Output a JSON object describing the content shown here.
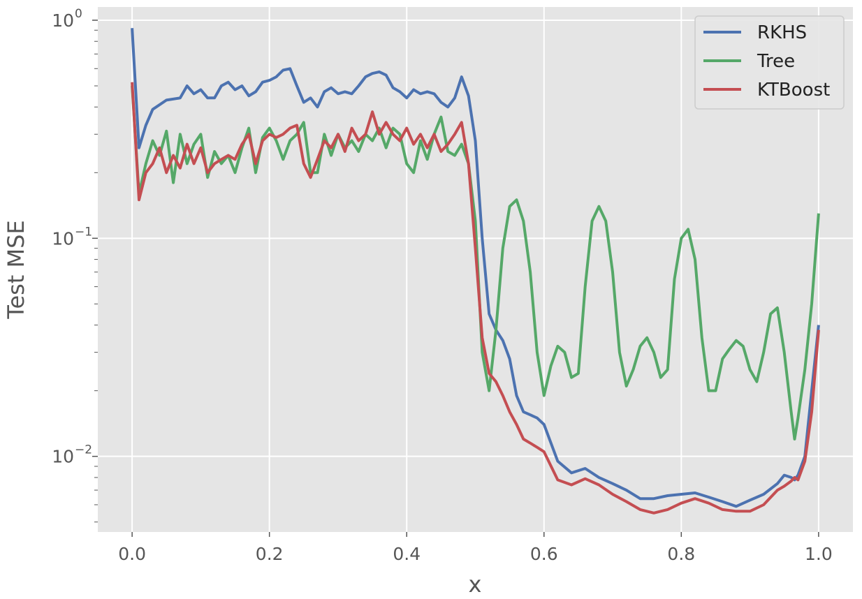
{
  "chart_data": {
    "type": "line",
    "title": "",
    "xlabel": "x",
    "ylabel": "Test MSE",
    "xlim": [
      -0.05,
      1.05
    ],
    "ylim": [
      0.0045,
      1.15
    ],
    "yscale": "log",
    "grid": true,
    "legend_position": "top-right",
    "x_ticks": [
      0.0,
      0.2,
      0.4,
      0.6,
      0.8,
      1.0
    ],
    "x_tick_labels": [
      "0.0",
      "0.2",
      "0.4",
      "0.6",
      "0.8",
      "1.0"
    ],
    "y_ticks": [
      {
        "value": 1,
        "base": "10",
        "exp": "0"
      },
      {
        "value": 0.1,
        "base": "10",
        "exp": "−1"
      },
      {
        "value": 0.01,
        "base": "10",
        "exp": "−2"
      }
    ],
    "series": [
      {
        "name": "RKHS",
        "color": "#4c72b0",
        "x": [
          0.0,
          0.01,
          0.02,
          0.03,
          0.05,
          0.07,
          0.08,
          0.09,
          0.1,
          0.11,
          0.12,
          0.13,
          0.14,
          0.15,
          0.16,
          0.17,
          0.18,
          0.19,
          0.2,
          0.21,
          0.22,
          0.23,
          0.24,
          0.25,
          0.26,
          0.27,
          0.28,
          0.29,
          0.3,
          0.31,
          0.32,
          0.33,
          0.34,
          0.35,
          0.36,
          0.37,
          0.38,
          0.39,
          0.4,
          0.41,
          0.42,
          0.43,
          0.44,
          0.45,
          0.46,
          0.47,
          0.48,
          0.49,
          0.5,
          0.51,
          0.52,
          0.53,
          0.54,
          0.55,
          0.56,
          0.57,
          0.58,
          0.59,
          0.6,
          0.62,
          0.64,
          0.66,
          0.68,
          0.7,
          0.72,
          0.74,
          0.76,
          0.78,
          0.8,
          0.82,
          0.84,
          0.86,
          0.88,
          0.9,
          0.92,
          0.94,
          0.95,
          0.96,
          0.965,
          0.97,
          0.98,
          0.99,
          1.0
        ],
        "y": [
          0.92,
          0.26,
          0.33,
          0.39,
          0.43,
          0.44,
          0.5,
          0.46,
          0.48,
          0.44,
          0.44,
          0.5,
          0.52,
          0.48,
          0.5,
          0.45,
          0.47,
          0.52,
          0.53,
          0.55,
          0.59,
          0.6,
          0.5,
          0.42,
          0.44,
          0.4,
          0.47,
          0.49,
          0.46,
          0.47,
          0.46,
          0.5,
          0.55,
          0.57,
          0.58,
          0.56,
          0.49,
          0.47,
          0.44,
          0.48,
          0.46,
          0.47,
          0.46,
          0.42,
          0.4,
          0.44,
          0.55,
          0.45,
          0.28,
          0.1,
          0.045,
          0.038,
          0.034,
          0.028,
          0.019,
          0.016,
          0.0155,
          0.015,
          0.014,
          0.0095,
          0.0084,
          0.0088,
          0.008,
          0.0075,
          0.007,
          0.0064,
          0.0064,
          0.0066,
          0.0067,
          0.0068,
          0.0065,
          0.0062,
          0.0059,
          0.0063,
          0.0067,
          0.0075,
          0.0082,
          0.008,
          0.0078,
          0.0082,
          0.01,
          0.02,
          0.04
        ]
      },
      {
        "name": "Tree",
        "color": "#55a868",
        "x": [
          0.0,
          0.01,
          0.02,
          0.03,
          0.04,
          0.05,
          0.06,
          0.07,
          0.08,
          0.09,
          0.1,
          0.11,
          0.12,
          0.13,
          0.14,
          0.15,
          0.16,
          0.17,
          0.18,
          0.19,
          0.2,
          0.21,
          0.22,
          0.23,
          0.24,
          0.25,
          0.26,
          0.27,
          0.28,
          0.29,
          0.3,
          0.31,
          0.32,
          0.33,
          0.34,
          0.35,
          0.36,
          0.37,
          0.38,
          0.39,
          0.4,
          0.41,
          0.42,
          0.43,
          0.44,
          0.45,
          0.46,
          0.47,
          0.48,
          0.49,
          0.5,
          0.51,
          0.52,
          0.53,
          0.54,
          0.55,
          0.56,
          0.57,
          0.58,
          0.59,
          0.6,
          0.61,
          0.62,
          0.63,
          0.64,
          0.65,
          0.66,
          0.67,
          0.68,
          0.69,
          0.7,
          0.71,
          0.72,
          0.73,
          0.74,
          0.75,
          0.76,
          0.77,
          0.78,
          0.79,
          0.8,
          0.81,
          0.82,
          0.83,
          0.84,
          0.85,
          0.86,
          0.87,
          0.88,
          0.89,
          0.9,
          0.91,
          0.92,
          0.93,
          0.94,
          0.95,
          0.96,
          0.965,
          0.97,
          0.98,
          0.99,
          1.0
        ],
        "y": [
          0.5,
          0.16,
          0.22,
          0.28,
          0.24,
          0.31,
          0.18,
          0.3,
          0.22,
          0.27,
          0.3,
          0.19,
          0.25,
          0.22,
          0.24,
          0.2,
          0.26,
          0.32,
          0.2,
          0.29,
          0.32,
          0.28,
          0.23,
          0.28,
          0.3,
          0.34,
          0.2,
          0.2,
          0.3,
          0.24,
          0.3,
          0.26,
          0.28,
          0.25,
          0.3,
          0.28,
          0.32,
          0.26,
          0.32,
          0.3,
          0.22,
          0.2,
          0.28,
          0.23,
          0.3,
          0.36,
          0.25,
          0.24,
          0.27,
          0.22,
          0.12,
          0.03,
          0.02,
          0.038,
          0.09,
          0.14,
          0.15,
          0.12,
          0.07,
          0.03,
          0.019,
          0.026,
          0.032,
          0.03,
          0.023,
          0.024,
          0.06,
          0.12,
          0.14,
          0.12,
          0.07,
          0.03,
          0.021,
          0.025,
          0.032,
          0.035,
          0.03,
          0.023,
          0.025,
          0.065,
          0.1,
          0.11,
          0.08,
          0.035,
          0.02,
          0.02,
          0.028,
          0.031,
          0.034,
          0.032,
          0.025,
          0.022,
          0.03,
          0.045,
          0.048,
          0.03,
          0.016,
          0.012,
          0.015,
          0.025,
          0.05,
          0.13
        ]
      },
      {
        "name": "KTBoost",
        "color": "#c44e52",
        "x": [
          0.0,
          0.01,
          0.02,
          0.03,
          0.04,
          0.05,
          0.06,
          0.07,
          0.08,
          0.09,
          0.1,
          0.11,
          0.12,
          0.13,
          0.14,
          0.15,
          0.16,
          0.17,
          0.18,
          0.19,
          0.2,
          0.21,
          0.22,
          0.23,
          0.24,
          0.25,
          0.26,
          0.27,
          0.28,
          0.29,
          0.3,
          0.31,
          0.32,
          0.33,
          0.34,
          0.35,
          0.36,
          0.37,
          0.38,
          0.39,
          0.4,
          0.41,
          0.42,
          0.43,
          0.44,
          0.45,
          0.46,
          0.47,
          0.48,
          0.49,
          0.5,
          0.51,
          0.52,
          0.53,
          0.54,
          0.55,
          0.56,
          0.57,
          0.58,
          0.59,
          0.6,
          0.62,
          0.64,
          0.66,
          0.68,
          0.7,
          0.72,
          0.74,
          0.76,
          0.78,
          0.8,
          0.82,
          0.84,
          0.86,
          0.88,
          0.9,
          0.92,
          0.94,
          0.95,
          0.96,
          0.965,
          0.97,
          0.98,
          0.99,
          1.0
        ],
        "y": [
          0.52,
          0.15,
          0.2,
          0.22,
          0.26,
          0.2,
          0.24,
          0.21,
          0.27,
          0.22,
          0.26,
          0.2,
          0.22,
          0.23,
          0.24,
          0.23,
          0.27,
          0.3,
          0.22,
          0.28,
          0.3,
          0.29,
          0.3,
          0.32,
          0.33,
          0.22,
          0.19,
          0.23,
          0.28,
          0.26,
          0.3,
          0.25,
          0.32,
          0.28,
          0.3,
          0.38,
          0.3,
          0.34,
          0.3,
          0.28,
          0.32,
          0.27,
          0.3,
          0.26,
          0.3,
          0.25,
          0.27,
          0.3,
          0.34,
          0.22,
          0.09,
          0.035,
          0.024,
          0.022,
          0.019,
          0.016,
          0.014,
          0.012,
          0.0115,
          0.011,
          0.0105,
          0.0078,
          0.0074,
          0.0079,
          0.0074,
          0.0067,
          0.0062,
          0.0057,
          0.0055,
          0.0057,
          0.0061,
          0.0064,
          0.0061,
          0.0057,
          0.0056,
          0.0056,
          0.006,
          0.007,
          0.0073,
          0.0077,
          0.008,
          0.0078,
          0.0095,
          0.016,
          0.038
        ]
      }
    ]
  }
}
